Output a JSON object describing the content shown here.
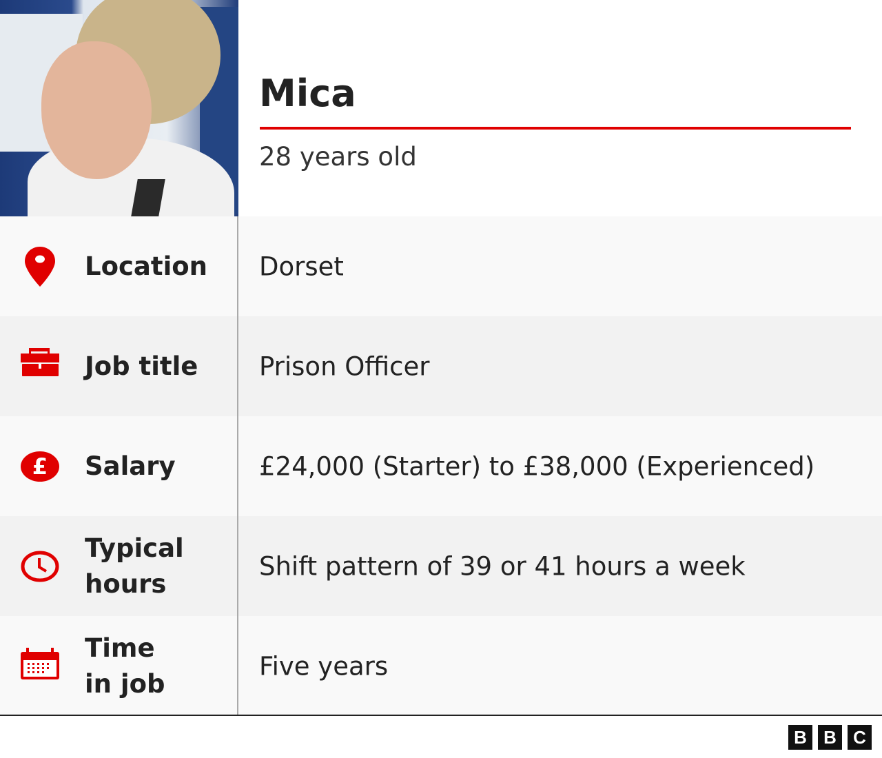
{
  "profile": {
    "name": "Mica",
    "age": "28 years old"
  },
  "accent_color": "#e00000",
  "rows": [
    {
      "icon": "location-pin-icon",
      "label": "Location",
      "value": "Dorset"
    },
    {
      "icon": "briefcase-icon",
      "label": "Job title",
      "value": "Prison Officer"
    },
    {
      "icon": "pound-coin-icon",
      "label": "Salary",
      "value": "£24,000 (Starter) to £38,000 (Experienced)"
    },
    {
      "icon": "clock-icon",
      "label_line1": "Typical",
      "label_line2": "hours",
      "value": "Shift pattern of 39 or 41 hours a week"
    },
    {
      "icon": "calendar-icon",
      "label_line1": "Time",
      "label_line2": "in job",
      "value": "Five years"
    }
  ],
  "logo": {
    "letters": [
      "B",
      "B",
      "C"
    ]
  }
}
